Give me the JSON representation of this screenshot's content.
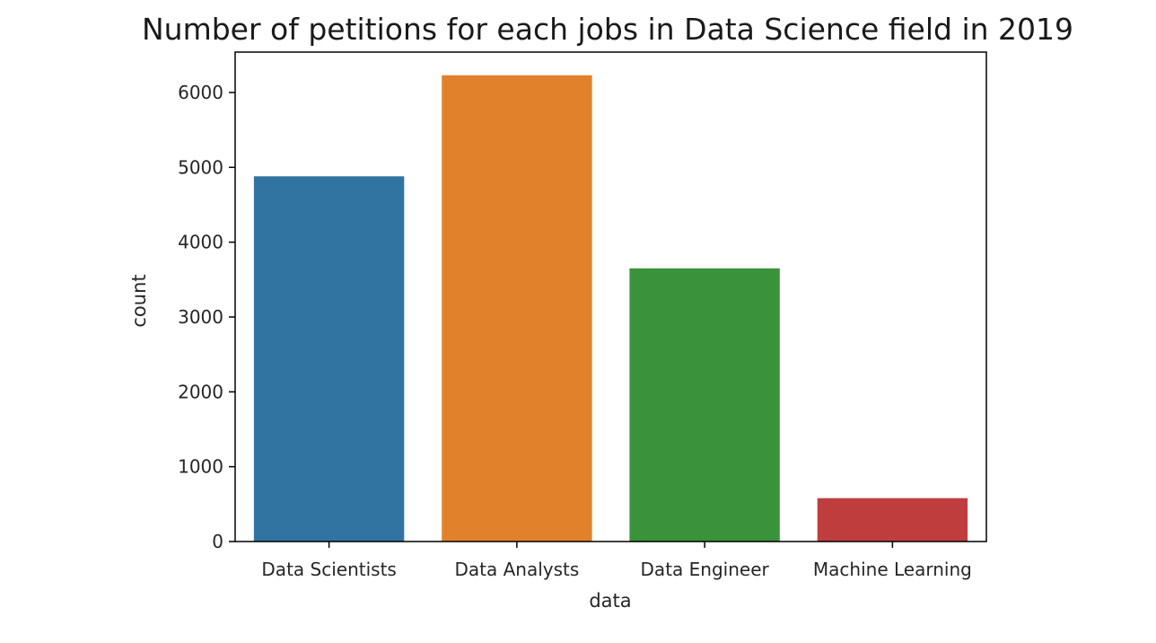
{
  "chart_data": {
    "type": "bar",
    "title": "Number of petitions for each jobs in Data Science field in 2019",
    "xlabel": "data",
    "ylabel": "count",
    "categories": [
      "Data Scientists",
      "Data Analysts",
      "Data Engineer",
      "Machine Learning"
    ],
    "values": [
      4880,
      6230,
      3650,
      580
    ],
    "colors": [
      "#3274a1",
      "#e1812c",
      "#3a923a",
      "#c03d3e"
    ],
    "ylim": [
      0,
      6540
    ],
    "yticks": [
      0,
      1000,
      2000,
      3000,
      4000,
      5000,
      6000
    ],
    "ytick_labels": [
      "0",
      "1000",
      "2000",
      "3000",
      "4000",
      "5000",
      "6000"
    ],
    "grid": false,
    "legend": "none"
  }
}
